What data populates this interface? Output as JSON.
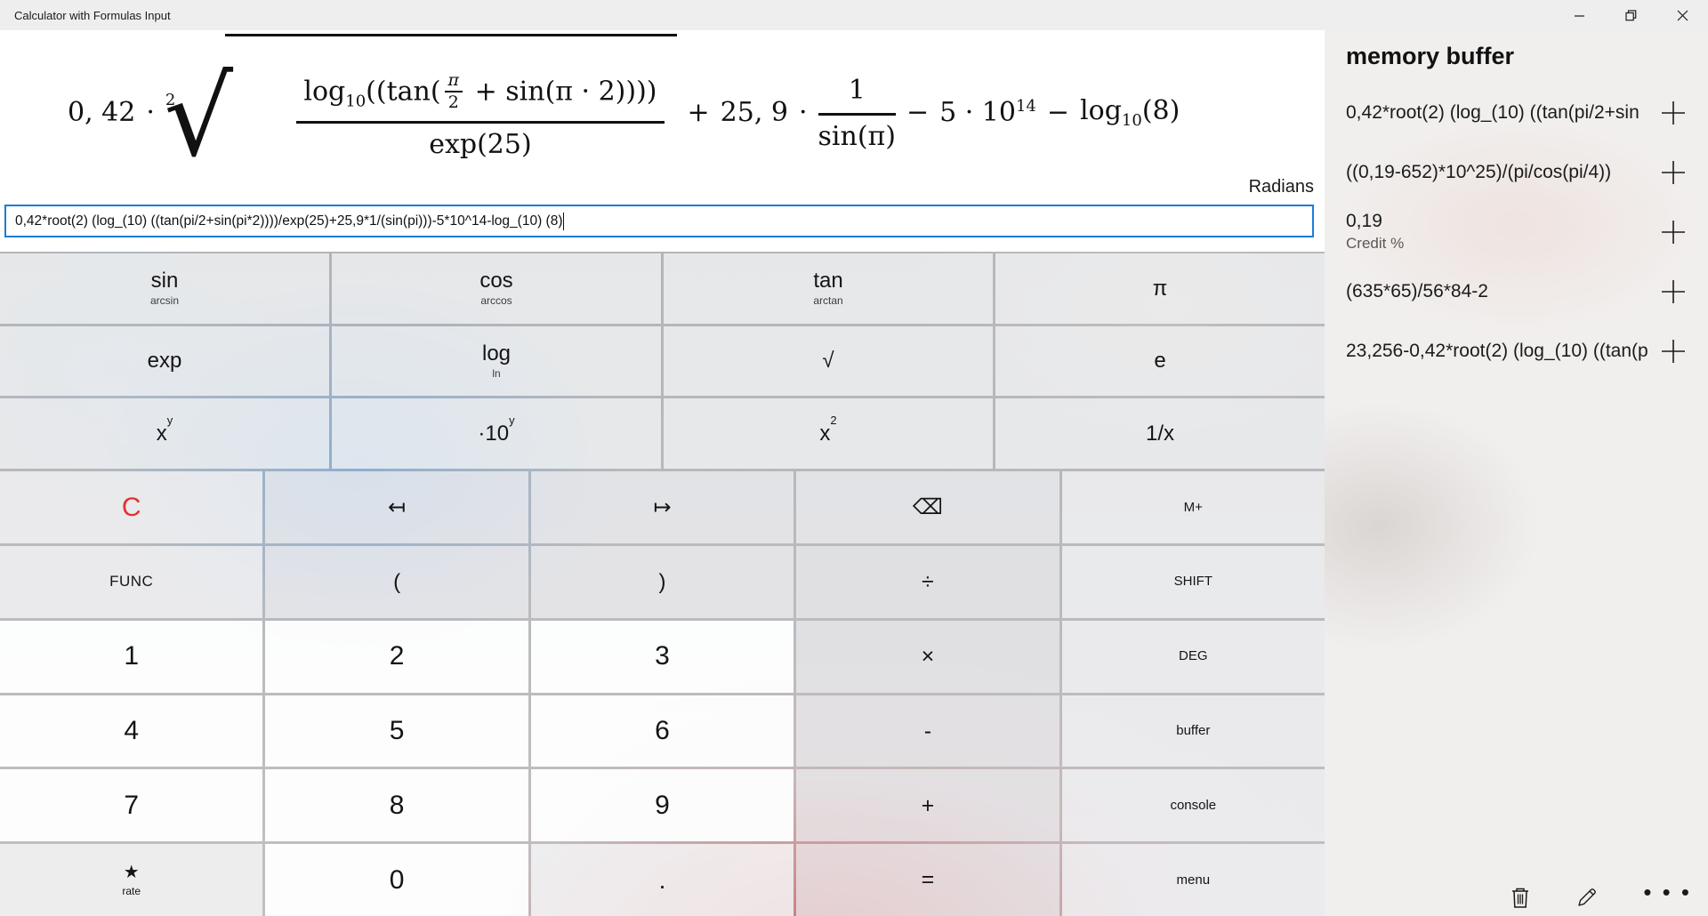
{
  "window": {
    "title": "Calculator with Formulas Input",
    "controls": {
      "minimize": "minimize-icon",
      "restore": "restore-icon",
      "close": "close-icon"
    }
  },
  "display": {
    "angle_mode": "Radians",
    "input_value": "0,42*root(2) (log_(10) ((tan(pi/2+sin(pi*2))))/exp(25)+25,9*1/(sin(pi)))-5*10^14-log_(10) (8)",
    "formula": {
      "lead": "0, 42",
      "times": "·",
      "root_index": "2",
      "radical": "√",
      "log_fn": "log",
      "log_sub": "10",
      "open": "((tan(",
      "pi": "π",
      "two": "2",
      "num_tail": " + sin(π · 2))))",
      "den": "exp(25)",
      "plus": "+",
      "coef2": "25, 9",
      "times2": "·",
      "one": "1",
      "sin_pi": "sin(π)",
      "minus": "−",
      "five_ten": "5 · 10",
      "exp14": "14",
      "minus2": "−",
      "log_fn2": "log",
      "log_sub2": "10",
      "arg8": "(8)"
    }
  },
  "keypad": {
    "function_rows": [
      [
        {
          "name": "sin",
          "label": "sin",
          "sub": "arcsin"
        },
        {
          "name": "cos",
          "label": "cos",
          "sub": "arccos"
        },
        {
          "name": "tan",
          "label": "tan",
          "sub": "arctan"
        },
        {
          "name": "pi",
          "label": "π"
        }
      ],
      [
        {
          "name": "exp",
          "label": "exp"
        },
        {
          "name": "log",
          "label": "log",
          "sub": "ln"
        },
        {
          "name": "sqrt",
          "label": "√"
        },
        {
          "name": "e",
          "label": "e"
        }
      ],
      [
        {
          "name": "x-pow-y",
          "label": "x",
          "sup": "y"
        },
        {
          "name": "times-10-pow-y",
          "label": "·10",
          "sup": "y"
        },
        {
          "name": "x-squared",
          "label": "x",
          "sup": "2"
        },
        {
          "name": "reciprocal",
          "label": "1/x"
        }
      ]
    ],
    "main_rows": [
      [
        {
          "name": "clear",
          "label": "C",
          "style": "clear"
        },
        {
          "name": "cursor-left",
          "label": "↤",
          "style": "nav"
        },
        {
          "name": "cursor-right",
          "label": "↦",
          "style": "nav"
        },
        {
          "name": "backspace",
          "label": "⌫",
          "style": "nav"
        },
        {
          "name": "memory-add",
          "label": "M+",
          "style": "side"
        }
      ],
      [
        {
          "name": "func",
          "label": "FUNC",
          "style": "funcword"
        },
        {
          "name": "paren-open",
          "label": "(",
          "style": "nav"
        },
        {
          "name": "paren-close",
          "label": ")",
          "style": "nav"
        },
        {
          "name": "divide",
          "label": "÷",
          "style": "op"
        },
        {
          "name": "shift",
          "label": "SHIFT",
          "style": "side"
        }
      ],
      [
        {
          "name": "digit-1",
          "label": "1",
          "style": "digit"
        },
        {
          "name": "digit-2",
          "label": "2",
          "style": "digit"
        },
        {
          "name": "digit-3",
          "label": "3",
          "style": "digit"
        },
        {
          "name": "multiply",
          "label": "×",
          "style": "op"
        },
        {
          "name": "deg",
          "label": "DEG",
          "style": "side"
        }
      ],
      [
        {
          "name": "digit-4",
          "label": "4",
          "style": "digit"
        },
        {
          "name": "digit-5",
          "label": "5",
          "style": "digit"
        },
        {
          "name": "digit-6",
          "label": "6",
          "style": "digit"
        },
        {
          "name": "subtract",
          "label": "-",
          "style": "op"
        },
        {
          "name": "buffer",
          "label": "buffer",
          "style": "side-lower"
        }
      ],
      [
        {
          "name": "digit-7",
          "label": "7",
          "style": "digit"
        },
        {
          "name": "digit-8",
          "label": "8",
          "style": "digit"
        },
        {
          "name": "digit-9",
          "label": "9",
          "style": "digit"
        },
        {
          "name": "add",
          "label": "+",
          "style": "op"
        },
        {
          "name": "console",
          "label": "console",
          "style": "side-lower"
        }
      ],
      [
        {
          "name": "rate",
          "label": "★",
          "sub": "rate",
          "style": "rate"
        },
        {
          "name": "digit-0",
          "label": "0",
          "style": "digit"
        },
        {
          "name": "decimal",
          "label": ".",
          "style": "dot"
        },
        {
          "name": "equals",
          "label": "=",
          "style": "op"
        },
        {
          "name": "menu",
          "label": "menu",
          "style": "side-lower"
        }
      ]
    ]
  },
  "memory": {
    "title": "memory buffer",
    "items": [
      {
        "text": "0,42*root(2) (log_(10) ((tan(pi/2+sin"
      },
      {
        "text": "((0,19-652)*10^25)/(pi/cos(pi/4))"
      },
      {
        "text": "0,19",
        "note": "Credit %"
      },
      {
        "text": "(635*65)/56*84-2"
      },
      {
        "text": "23,256-0,42*root(2) (log_(10) ((tan(p"
      }
    ],
    "footer_icons": [
      "trash-icon",
      "edit-icon",
      "more-icon"
    ]
  },
  "colors": {
    "input_border": "#1a7dd7",
    "clear_red": "#e3312e",
    "panel_bg": "#f1efee"
  }
}
